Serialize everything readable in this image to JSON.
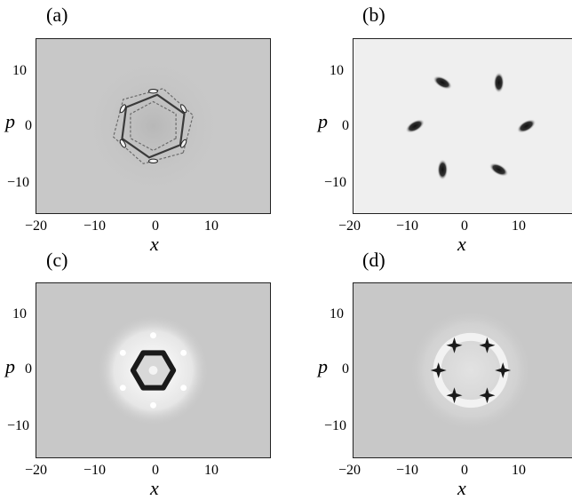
{
  "figure": {
    "panels": [
      {
        "label": "(a)",
        "xlabel": "x",
        "ylabel": "p",
        "xticks": [
          "−20",
          "−10",
          "0",
          "10"
        ],
        "yticks": [
          "10",
          "0",
          "−10"
        ]
      },
      {
        "label": "(b)",
        "xlabel": "x",
        "ylabel": "p",
        "xticks": [
          "−20",
          "−10",
          "0",
          "10"
        ],
        "yticks": [
          "10",
          "0",
          "−10"
        ]
      },
      {
        "label": "(c)",
        "xlabel": "x",
        "ylabel": "p",
        "xticks": [
          "−20",
          "−10",
          "0",
          "10"
        ],
        "yticks": [
          "10",
          "0",
          "−10"
        ]
      },
      {
        "label": "(d)",
        "xlabel": "x",
        "ylabel": "p",
        "xticks": [
          "−20",
          "−10",
          "0",
          "10"
        ],
        "yticks": [
          "10",
          "0",
          "−10"
        ]
      }
    ]
  },
  "chart_data": [
    {
      "type": "heatmap",
      "panel": "(a)",
      "xlabel": "x",
      "ylabel": "p",
      "xlim": [
        -20,
        20
      ],
      "ylim": [
        -16,
        16
      ],
      "background": "#c8c8c8",
      "description_pattern": "sixfold-symmetric interference ring",
      "features": [
        {
          "shape": "hexagonal-ring",
          "center": [
            0,
            0
          ],
          "radius": 6
        }
      ]
    },
    {
      "type": "heatmap",
      "panel": "(b)",
      "xlabel": "x",
      "ylabel": "p",
      "xlim": [
        -20,
        20
      ],
      "ylim": [
        -16,
        16
      ],
      "background": "#efefef",
      "features": [
        {
          "shape": "blob",
          "x": 9.5,
          "y": 0
        },
        {
          "shape": "blob",
          "x": 4.8,
          "y": 8
        },
        {
          "shape": "blob",
          "x": -4.8,
          "y": 8
        },
        {
          "shape": "blob",
          "x": -9.5,
          "y": 0
        },
        {
          "shape": "blob",
          "x": -4.8,
          "y": -8
        },
        {
          "shape": "blob",
          "x": 4.8,
          "y": -8
        }
      ]
    },
    {
      "type": "heatmap",
      "panel": "(c)",
      "xlabel": "x",
      "ylabel": "p",
      "xlim": [
        -20,
        20
      ],
      "ylim": [
        -16,
        16
      ],
      "background": "#c8c8c8",
      "features": [
        {
          "shape": "compact-hexagonal-ring",
          "center": [
            0,
            0
          ],
          "radius": 3
        }
      ]
    },
    {
      "type": "heatmap",
      "panel": "(d)",
      "xlabel": "x",
      "ylabel": "p",
      "xlim": [
        -20,
        20
      ],
      "ylim": [
        -16,
        16
      ],
      "background": "#c8c8c8",
      "features": [
        {
          "shape": "star",
          "x": 5.5,
          "y": 0
        },
        {
          "shape": "star",
          "x": 2.8,
          "y": 4.6
        },
        {
          "shape": "star",
          "x": -2.8,
          "y": 4.6
        },
        {
          "shape": "star",
          "x": -5.5,
          "y": 0
        },
        {
          "shape": "star",
          "x": -2.8,
          "y": -4.6
        },
        {
          "shape": "star",
          "x": 2.8,
          "y": -4.6
        }
      ]
    }
  ]
}
